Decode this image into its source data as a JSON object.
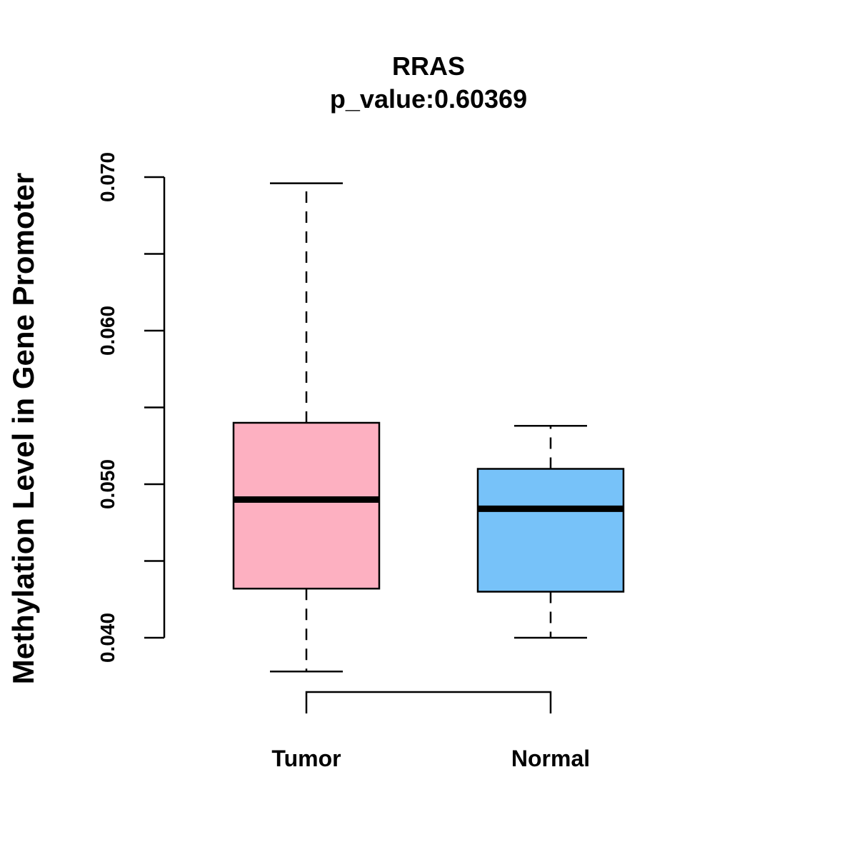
{
  "chart_data": {
    "type": "boxplot",
    "title": "RRAS",
    "subtitle": "p_value:0.60369",
    "xlabel": "",
    "ylabel": "Methylation Level in Gene Promoter",
    "ylim": [
      0.04,
      0.07
    ],
    "y_ticks": [
      0.04,
      0.045,
      0.05,
      0.055,
      0.06,
      0.065,
      0.07
    ],
    "y_tick_labels": [
      "0.040",
      "",
      "0.050",
      "",
      "0.060",
      "",
      "0.070"
    ],
    "categories": [
      "Tumor",
      "Normal"
    ],
    "boxes": [
      {
        "name": "Tumor",
        "whisker_low": 0.0378,
        "q1": 0.0432,
        "median": 0.049,
        "q3": 0.054,
        "whisker_high": 0.0696,
        "color": "#FDB0C1"
      },
      {
        "name": "Normal",
        "whisker_low": 0.04,
        "q1": 0.043,
        "median": 0.0484,
        "q3": 0.051,
        "whisker_high": 0.0538,
        "color": "#77C2F9"
      }
    ],
    "comparison_bracket": [
      "Tumor",
      "Normal"
    ],
    "grid": false
  }
}
